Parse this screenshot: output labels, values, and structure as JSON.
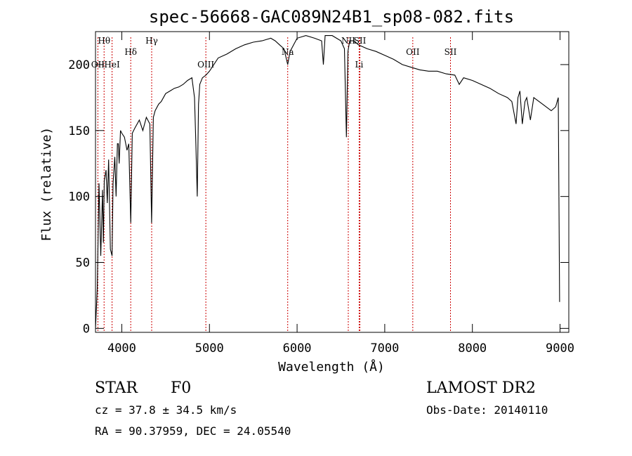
{
  "chart_data": {
    "type": "line",
    "title": "spec-56668-GAC089N24B1_sp08-082.fits",
    "xlabel": "Wavelength (Å)",
    "ylabel": "Flux (relative)",
    "xlim": [
      3700,
      9100
    ],
    "ylim": [
      -3,
      225
    ],
    "xticks": [
      4000,
      5000,
      6000,
      7000,
      8000,
      9000
    ],
    "yticks": [
      0,
      50,
      100,
      150,
      200
    ],
    "series": [
      {
        "x": [
          3700,
          3720,
          3740,
          3760,
          3780,
          3790,
          3800,
          3820,
          3835,
          3850,
          3870,
          3889,
          3900,
          3920,
          3935,
          3950,
          3960,
          3970,
          3985,
          4000,
          4030,
          4060,
          4080,
          4102,
          4120,
          4150,
          4200,
          4240,
          4280,
          4320,
          4340,
          4360,
          4380,
          4420,
          4450,
          4500,
          4550,
          4600,
          4650,
          4700,
          4750,
          4800,
          4830,
          4845,
          4861,
          4875,
          4890,
          4920,
          4960,
          5000,
          5050,
          5100,
          5200,
          5300,
          5400,
          5500,
          5600,
          5700,
          5750,
          5800,
          5850,
          5893,
          5920,
          6000,
          6100,
          6200,
          6280,
          6300,
          6320,
          6400,
          6500,
          6540,
          6563,
          6580,
          6600,
          6650,
          6700,
          6800,
          6900,
          7000,
          7100,
          7200,
          7300,
          7400,
          7500,
          7600,
          7700,
          7800,
          7850,
          7900,
          8000,
          8100,
          8200,
          8300,
          8400,
          8450,
          8498,
          8520,
          8542,
          8570,
          8600,
          8620,
          8662,
          8700,
          8800,
          8900,
          8950,
          8980,
          8995
        ],
        "values": [
          0,
          30,
          110,
          55,
          105,
          65,
          112,
          120,
          95,
          128,
          60,
          55,
          110,
          130,
          100,
          140,
          140,
          125,
          150,
          148,
          145,
          135,
          140,
          80,
          148,
          152,
          158,
          150,
          160,
          155,
          80,
          160,
          165,
          170,
          172,
          178,
          180,
          182,
          183,
          185,
          188,
          190,
          175,
          140,
          100,
          170,
          185,
          190,
          192,
          195,
          200,
          205,
          208,
          212,
          215,
          217,
          218,
          220,
          218,
          215,
          212,
          200,
          210,
          220,
          222,
          220,
          218,
          200,
          222,
          222,
          218,
          212,
          145,
          210,
          218,
          218,
          215,
          212,
          210,
          207,
          204,
          200,
          198,
          196,
          195,
          195,
          193,
          192,
          185,
          190,
          188,
          185,
          182,
          178,
          175,
          172,
          155,
          175,
          180,
          155,
          172,
          175,
          158,
          175,
          170,
          165,
          168,
          175,
          20
        ]
      }
    ],
    "spectral_lines": [
      {
        "label": "Hθ",
        "x": 3798,
        "tier": "high"
      },
      {
        "label": "OII",
        "x": 3727,
        "tier": "low"
      },
      {
        "label": "HeI",
        "x": 3889,
        "tier": "low"
      },
      {
        "label": "Hδ",
        "x": 4102,
        "tier": "mid"
      },
      {
        "label": "Hγ",
        "x": 4341,
        "tier": "high"
      },
      {
        "label": "OIII",
        "x": 4959,
        "tier": "low"
      },
      {
        "label": "Na",
        "x": 5893,
        "tier": "mid"
      },
      {
        "label": "NII",
        "x": 6584,
        "tier": "high"
      },
      {
        "label": "SII",
        "x": 6717,
        "tier": "high"
      },
      {
        "label": "Li",
        "x": 6708,
        "tier": "low"
      },
      {
        "label": "OII",
        "x": 7320,
        "tier": "mid"
      },
      {
        "label": "SII",
        "x": 7750,
        "tier": "mid"
      }
    ],
    "grid": false
  },
  "info": {
    "object_type": "STAR",
    "subclass": "F0",
    "survey": "LAMOST DR2",
    "redshift_text": "cz = 37.8 ± 34.5 km/s",
    "obs_date_text": "Obs-Date: 20140110",
    "coords_text": "RA =  90.37959, DEC =  24.05540"
  },
  "colors": {
    "line": "#000000",
    "marker_lines": "#cc0000"
  }
}
